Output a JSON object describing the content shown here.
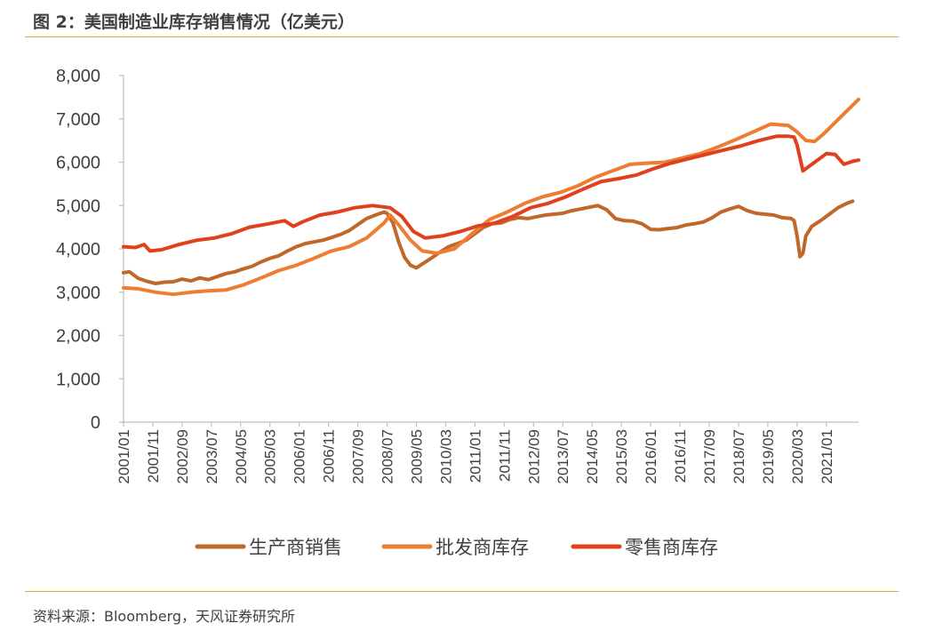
{
  "header": {
    "title": "图 2：美国制造业库存销售情况（亿美元）"
  },
  "footer": {
    "source": "资料来源：Bloomberg，天风证券研究所"
  },
  "colors": {
    "rule": "#E8A33D",
    "axis": "#BFBFBF"
  },
  "chart_data": {
    "type": "line",
    "title": "",
    "xlabel": "",
    "ylabel": "",
    "ylim": [
      0,
      8000
    ],
    "yticks": [
      0,
      1000,
      2000,
      3000,
      4000,
      5000,
      6000,
      7000,
      8000
    ],
    "ytick_labels": [
      "0",
      "1,000",
      "2,000",
      "3,000",
      "4,000",
      "5,000",
      "6,000",
      "7,000",
      "8,000"
    ],
    "xlim": [
      "2001/01",
      "2021/12"
    ],
    "xtick_labels": [
      "2001/01",
      "2001/11",
      "2002/09",
      "2003/07",
      "2004/05",
      "2005/03",
      "2006/01",
      "2006/11",
      "2007/09",
      "2008/07",
      "2009/05",
      "2010/03",
      "2011/01",
      "2011/11",
      "2012/09",
      "2013/07",
      "2014/05",
      "2015/03",
      "2016/01",
      "2016/11",
      "2017/09",
      "2018/07",
      "2019/05",
      "2020/03",
      "2021/01"
    ],
    "grid": false,
    "legend_position": "bottom",
    "series": [
      {
        "name": "生产商销售",
        "color": "#C0672A",
        "points": [
          [
            "2001/01",
            3450
          ],
          [
            "2001/03",
            3470
          ],
          [
            "2001/06",
            3320
          ],
          [
            "2001/09",
            3250
          ],
          [
            "2001/12",
            3200
          ],
          [
            "2002/03",
            3230
          ],
          [
            "2002/06",
            3240
          ],
          [
            "2002/09",
            3300
          ],
          [
            "2002/12",
            3260
          ],
          [
            "2003/03",
            3330
          ],
          [
            "2003/06",
            3290
          ],
          [
            "2003/09",
            3360
          ],
          [
            "2003/12",
            3430
          ],
          [
            "2004/03",
            3470
          ],
          [
            "2004/06",
            3540
          ],
          [
            "2004/09",
            3600
          ],
          [
            "2004/12",
            3700
          ],
          [
            "2005/03",
            3780
          ],
          [
            "2005/06",
            3840
          ],
          [
            "2005/09",
            3950
          ],
          [
            "2005/12",
            4050
          ],
          [
            "2006/03",
            4120
          ],
          [
            "2006/06",
            4160
          ],
          [
            "2006/09",
            4200
          ],
          [
            "2006/12",
            4260
          ],
          [
            "2007/03",
            4330
          ],
          [
            "2007/06",
            4420
          ],
          [
            "2007/09",
            4560
          ],
          [
            "2007/12",
            4700
          ],
          [
            "2008/03",
            4780
          ],
          [
            "2008/06",
            4850
          ],
          [
            "2008/07",
            4820
          ],
          [
            "2008/09",
            4600
          ],
          [
            "2008/11",
            4150
          ],
          [
            "2009/01",
            3800
          ],
          [
            "2009/03",
            3620
          ],
          [
            "2009/05",
            3560
          ],
          [
            "2009/07",
            3650
          ],
          [
            "2009/10",
            3780
          ],
          [
            "2010/01",
            3920
          ],
          [
            "2010/04",
            4050
          ],
          [
            "2010/07",
            4120
          ],
          [
            "2010/10",
            4200
          ],
          [
            "2011/01",
            4350
          ],
          [
            "2011/04",
            4500
          ],
          [
            "2011/07",
            4580
          ],
          [
            "2011/10",
            4600
          ],
          [
            "2012/01",
            4680
          ],
          [
            "2012/04",
            4720
          ],
          [
            "2012/07",
            4700
          ],
          [
            "2012/10",
            4740
          ],
          [
            "2013/01",
            4780
          ],
          [
            "2013/04",
            4800
          ],
          [
            "2013/07",
            4820
          ],
          [
            "2013/10",
            4880
          ],
          [
            "2014/01",
            4920
          ],
          [
            "2014/04",
            4960
          ],
          [
            "2014/07",
            5000
          ],
          [
            "2014/10",
            4900
          ],
          [
            "2015/01",
            4700
          ],
          [
            "2015/04",
            4650
          ],
          [
            "2015/07",
            4640
          ],
          [
            "2015/10",
            4580
          ],
          [
            "2016/01",
            4450
          ],
          [
            "2016/04",
            4440
          ],
          [
            "2016/07",
            4470
          ],
          [
            "2016/10",
            4490
          ],
          [
            "2017/01",
            4550
          ],
          [
            "2017/04",
            4580
          ],
          [
            "2017/07",
            4620
          ],
          [
            "2017/10",
            4720
          ],
          [
            "2018/01",
            4850
          ],
          [
            "2018/04",
            4920
          ],
          [
            "2018/07",
            4980
          ],
          [
            "2018/10",
            4880
          ],
          [
            "2019/01",
            4820
          ],
          [
            "2019/04",
            4800
          ],
          [
            "2019/07",
            4780
          ],
          [
            "2019/10",
            4720
          ],
          [
            "2020/01",
            4700
          ],
          [
            "2020/02",
            4650
          ],
          [
            "2020/03",
            4300
          ],
          [
            "2020/04",
            3820
          ],
          [
            "2020/05",
            3900
          ],
          [
            "2020/06",
            4300
          ],
          [
            "2020/08",
            4520
          ],
          [
            "2020/11",
            4650
          ],
          [
            "2021/02",
            4800
          ],
          [
            "2021/05",
            4950
          ],
          [
            "2021/08",
            5050
          ],
          [
            "2021/10",
            5100
          ]
        ]
      },
      {
        "name": "批发商库存",
        "color": "#ED7D31",
        "points": [
          [
            "2001/01",
            3100
          ],
          [
            "2001/06",
            3080
          ],
          [
            "2001/12",
            3000
          ],
          [
            "2002/06",
            2950
          ],
          [
            "2002/12",
            3000
          ],
          [
            "2003/06",
            3030
          ],
          [
            "2003/12",
            3050
          ],
          [
            "2004/06",
            3170
          ],
          [
            "2004/12",
            3330
          ],
          [
            "2005/06",
            3500
          ],
          [
            "2005/12",
            3620
          ],
          [
            "2006/06",
            3780
          ],
          [
            "2006/12",
            3950
          ],
          [
            "2007/06",
            4050
          ],
          [
            "2007/12",
            4250
          ],
          [
            "2008/06",
            4600
          ],
          [
            "2008/08",
            4780
          ],
          [
            "2008/11",
            4550
          ],
          [
            "2009/03",
            4200
          ],
          [
            "2009/07",
            3950
          ],
          [
            "2009/12",
            3900
          ],
          [
            "2010/06",
            4000
          ],
          [
            "2010/12",
            4350
          ],
          [
            "2011/06",
            4680
          ],
          [
            "2011/12",
            4850
          ],
          [
            "2012/06",
            5050
          ],
          [
            "2012/12",
            5200
          ],
          [
            "2013/06",
            5300
          ],
          [
            "2013/12",
            5450
          ],
          [
            "2014/06",
            5650
          ],
          [
            "2014/12",
            5800
          ],
          [
            "2015/06",
            5950
          ],
          [
            "2015/12",
            5980
          ],
          [
            "2016/06",
            6000
          ],
          [
            "2016/12",
            6100
          ],
          [
            "2017/06",
            6200
          ],
          [
            "2017/12",
            6350
          ],
          [
            "2018/06",
            6520
          ],
          [
            "2018/12",
            6700
          ],
          [
            "2019/06",
            6880
          ],
          [
            "2019/12",
            6850
          ],
          [
            "2020/03",
            6700
          ],
          [
            "2020/06",
            6500
          ],
          [
            "2020/09",
            6480
          ],
          [
            "2020/12",
            6650
          ],
          [
            "2021/03",
            6850
          ],
          [
            "2021/06",
            7050
          ],
          [
            "2021/09",
            7250
          ],
          [
            "2021/12",
            7450
          ]
        ]
      },
      {
        "name": "零售商库存",
        "color": "#E0401E",
        "points": [
          [
            "2001/01",
            4050
          ],
          [
            "2001/05",
            4030
          ],
          [
            "2001/08",
            4100
          ],
          [
            "2001/10",
            3950
          ],
          [
            "2002/02",
            3980
          ],
          [
            "2002/08",
            4100
          ],
          [
            "2003/02",
            4200
          ],
          [
            "2003/08",
            4250
          ],
          [
            "2004/02",
            4350
          ],
          [
            "2004/08",
            4500
          ],
          [
            "2005/02",
            4570
          ],
          [
            "2005/08",
            4650
          ],
          [
            "2005/11",
            4520
          ],
          [
            "2006/02",
            4620
          ],
          [
            "2006/08",
            4780
          ],
          [
            "2007/02",
            4850
          ],
          [
            "2007/08",
            4950
          ],
          [
            "2008/02",
            5000
          ],
          [
            "2008/08",
            4950
          ],
          [
            "2008/12",
            4750
          ],
          [
            "2009/04",
            4400
          ],
          [
            "2009/08",
            4250
          ],
          [
            "2010/02",
            4300
          ],
          [
            "2010/08",
            4400
          ],
          [
            "2011/02",
            4530
          ],
          [
            "2011/08",
            4600
          ],
          [
            "2012/02",
            4750
          ],
          [
            "2012/08",
            4950
          ],
          [
            "2013/02",
            5050
          ],
          [
            "2013/08",
            5200
          ],
          [
            "2014/02",
            5380
          ],
          [
            "2014/08",
            5550
          ],
          [
            "2015/02",
            5620
          ],
          [
            "2015/08",
            5700
          ],
          [
            "2016/02",
            5850
          ],
          [
            "2016/08",
            5980
          ],
          [
            "2017/02",
            6080
          ],
          [
            "2017/08",
            6180
          ],
          [
            "2018/02",
            6280
          ],
          [
            "2018/08",
            6380
          ],
          [
            "2019/02",
            6500
          ],
          [
            "2019/08",
            6600
          ],
          [
            "2019/12",
            6600
          ],
          [
            "2020/02",
            6580
          ],
          [
            "2020/03",
            6400
          ],
          [
            "2020/05",
            5800
          ],
          [
            "2020/07",
            5900
          ],
          [
            "2020/10",
            6050
          ],
          [
            "2021/01",
            6200
          ],
          [
            "2021/04",
            6180
          ],
          [
            "2021/07",
            5950
          ],
          [
            "2021/10",
            6020
          ],
          [
            "2021/12",
            6050
          ]
        ]
      }
    ]
  }
}
